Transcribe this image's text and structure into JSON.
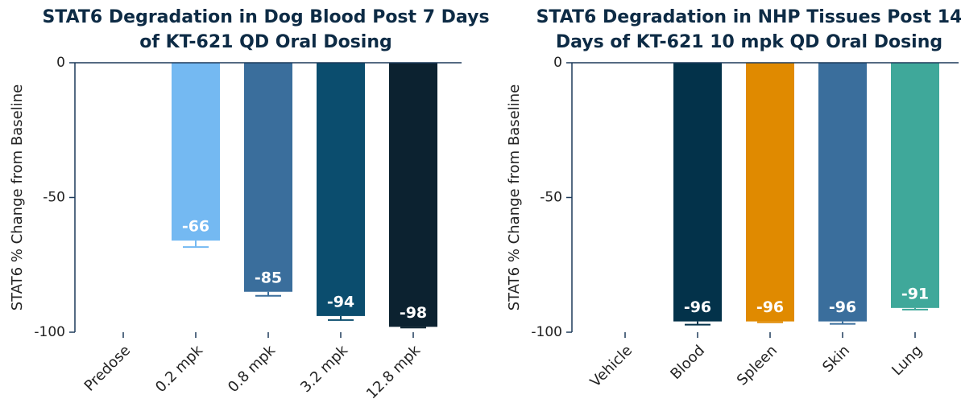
{
  "chart_data": [
    {
      "type": "bar",
      "title": "STAT6 Degradation in Dog Blood Post 7 Days of KT-621 QD Oral Dosing",
      "ylabel": "STAT6 % Change from Baseline",
      "categories": [
        "Predose",
        "0.2 mpk",
        "0.8 mpk",
        "3.2 mpk",
        "12.8 mpk"
      ],
      "values": [
        0,
        -66,
        -85,
        -94,
        -98
      ],
      "value_labels": [
        null,
        "-66",
        "-85",
        "-94",
        "-98"
      ],
      "errors": [
        null,
        2.4,
        1.5,
        1.5,
        0.3
      ],
      "colors": [
        "#74b9f2",
        "#74b9f2",
        "#3a6e9c",
        "#0b4d6e",
        "#0c2230"
      ],
      "ylim": [
        -100,
        0
      ],
      "yticks": [
        0,
        -50,
        -100
      ]
    },
    {
      "type": "bar",
      "title": "STAT6 Degradation in NHP Tissues Post 14 Days of KT-621 10 mpk QD Oral Dosing",
      "ylabel": "STAT6 % Change from Baseline",
      "categories": [
        "Vehicle",
        "Blood",
        "Spleen",
        "Skin",
        "Lung"
      ],
      "values": [
        0,
        -96,
        -96,
        -96,
        -91
      ],
      "value_labels": [
        null,
        "-96",
        "-96",
        "-96",
        "-91"
      ],
      "errors": [
        null,
        1.2,
        0.3,
        0.9,
        0.6
      ],
      "colors": [
        "#03324a",
        "#03324a",
        "#e08a00",
        "#3a6e9c",
        "#3fa89a"
      ],
      "ylim": [
        -100,
        0
      ],
      "yticks": [
        0,
        -50,
        -100
      ]
    }
  ]
}
